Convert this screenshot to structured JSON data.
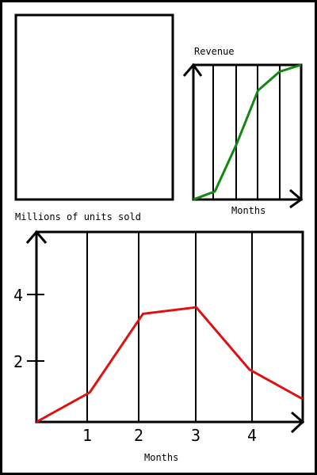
{
  "colors": {
    "background": "#ffffff",
    "frame": "#000000",
    "revenue_line": "#118811",
    "units_line": "#dd1111"
  },
  "top_left_panel": {
    "caption": "Millions of units sold",
    "content": "blank"
  },
  "chart_data": [
    {
      "id": "revenue",
      "type": "line",
      "title": "Revenue",
      "xlabel": "Months",
      "ylabel": "",
      "xticks": [],
      "yticks": [],
      "grid": "vertical",
      "axes": "arrows",
      "xlim": [
        0,
        5
      ],
      "ylim": [
        0,
        1
      ],
      "series": [
        {
          "color": "#118811",
          "x": [
            0,
            1,
            2,
            3,
            4,
            5
          ],
          "y": [
            0.0,
            0.06,
            0.41,
            0.81,
            0.95,
            1.0
          ]
        }
      ]
    },
    {
      "id": "units",
      "type": "line",
      "title": "",
      "xlabel": "Months",
      "ylabel": "",
      "xticks": [
        "1",
        "2",
        "3",
        "4"
      ],
      "yticks": [
        "2",
        "4"
      ],
      "grid": "vertical",
      "axes": "arrows",
      "xlim": [
        0,
        5
      ],
      "ylim": [
        0,
        5.8
      ],
      "series": [
        {
          "color": "#dd1111",
          "x": [
            0,
            1,
            2,
            3,
            4,
            5
          ],
          "y": [
            0.0,
            0.9,
            3.3,
            3.5,
            1.6,
            0.7
          ]
        }
      ]
    }
  ]
}
